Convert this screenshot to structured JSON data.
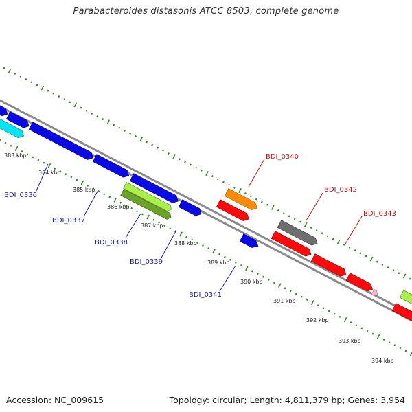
{
  "title": "Parabacteroides distasonis ATCC 8503, complete genome",
  "footer": {
    "accession": "Accession: NC_009615",
    "stats": "Topology: circular; Length: 4,811,379 bp; Genes: 3,954"
  },
  "colors": {
    "backbone": "#8a8a8a",
    "tick": "#2e8b20",
    "reverse_label": "#1a1aaa",
    "forward_label": "#cc1111"
  },
  "kbp_labels": [
    "383 kbp",
    "384 kbp",
    "385 kbp",
    "386 kbp",
    "387 kbp",
    "388 kbp",
    "389 kbp",
    "390 kbp",
    "391 kbp",
    "392 kbp",
    "393 kbp",
    "394 kbp"
  ],
  "gene_labels": {
    "reverse": [
      "BDI_0336",
      "BDI_0337",
      "BDI_0338",
      "BDI_0339",
      "BDI_0341"
    ],
    "forward": [
      "BDI_0340",
      "BDI_0342",
      "BDI_0343"
    ]
  }
}
